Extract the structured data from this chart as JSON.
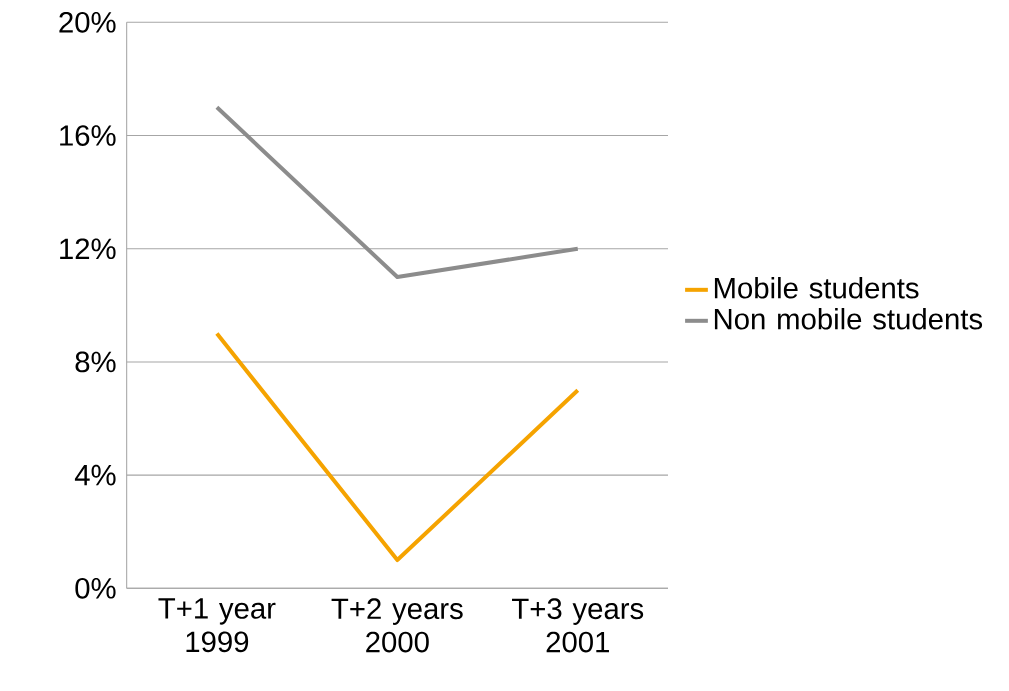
{
  "chart_data": {
    "type": "line",
    "categories": [
      "T+1 year 1999",
      "T+2 years 2000",
      "T+3 years 2001"
    ],
    "series": [
      {
        "name": "Mobile students",
        "color": "#f5a300",
        "values": [
          9,
          1,
          7
        ]
      },
      {
        "name": "Non mobile students",
        "color": "#8c8c8c",
        "values": [
          17,
          11,
          12
        ]
      }
    ],
    "ylim": [
      0,
      20
    ],
    "yticks": [
      {
        "value": 0,
        "label": "0%"
      },
      {
        "value": 4,
        "label": "4%"
      },
      {
        "value": 8,
        "label": "8%"
      },
      {
        "value": 12,
        "label": "12%"
      },
      {
        "value": 16,
        "label": "16%"
      },
      {
        "value": 20,
        "label": "20%"
      }
    ],
    "grid": "y",
    "legend": "right"
  }
}
